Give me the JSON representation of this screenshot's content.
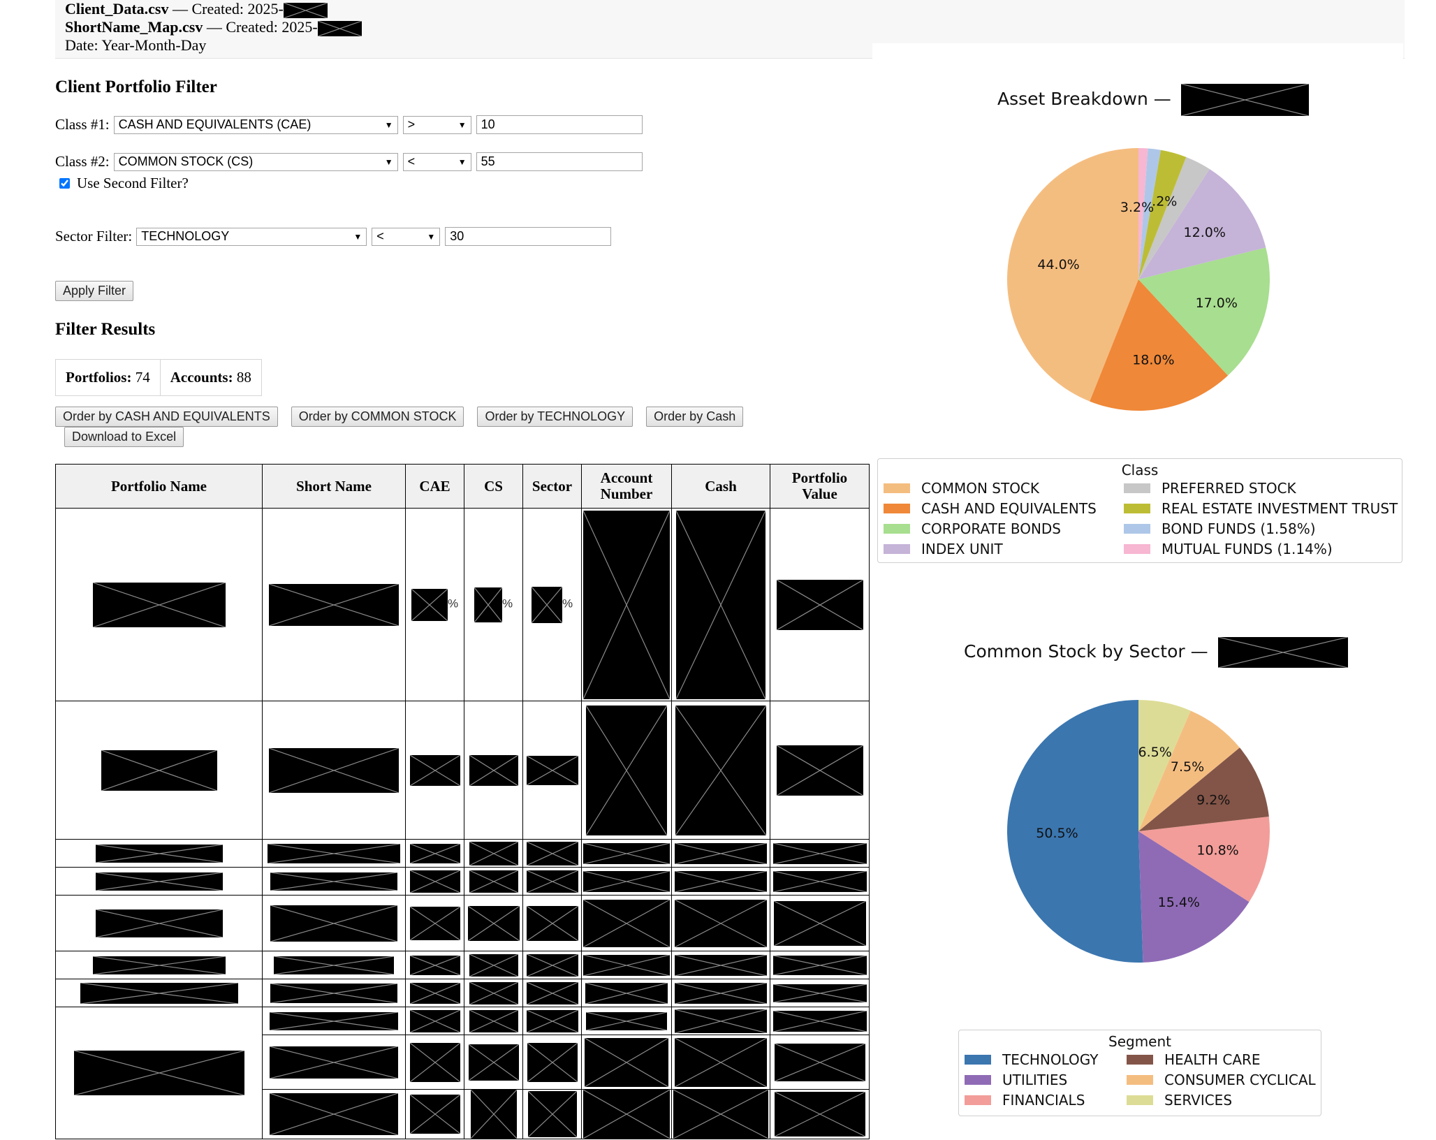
{
  "header": {
    "line1_file": "Client_Data.csv",
    "line1_text": " — Created: 2025-",
    "line2_file": "ShortName_Map.csv",
    "line2_text": " — Created: 2025-",
    "line3_text": "Date: Year-Month-Day"
  },
  "filter": {
    "title": "Client Portfolio Filter",
    "class1_label": "Class #1:",
    "class1_value": "CASH AND EQUIVALENTS (CAE)",
    "class1_op": ">",
    "class1_threshold": "10",
    "class2_label": "Class #2:",
    "class2_value": "COMMON STOCK (CS)",
    "class2_op": "<",
    "class2_threshold": "55",
    "use_second_label": "Use Second Filter?",
    "use_second_checked": true,
    "sector_label": "Sector Filter:",
    "sector_value": "TECHNOLOGY",
    "sector_op": "<",
    "sector_threshold": "30",
    "apply_label": "Apply Filter"
  },
  "results": {
    "title": "Filter Results",
    "portfolios_label": "Portfolios:",
    "portfolios_count": "74",
    "accounts_label": "Accounts:",
    "accounts_count": "88",
    "order_buttons": [
      "Order by CASH AND EQUIVALENTS",
      "Order by COMMON STOCK",
      "Order by TECHNOLOGY",
      "Order by Cash"
    ],
    "download_label": "Download to Excel",
    "pct_symbol": "%",
    "columns": [
      "Portfolio Name",
      "Short Name",
      "CAE",
      "CS",
      "Sector",
      "Account Number",
      "Cash",
      "Portfolio Value"
    ],
    "col_account_l1": "Account",
    "col_account_l2": "Number",
    "col_value_l1": "Portfolio",
    "col_value_l2": "Value"
  },
  "chart_data": [
    {
      "type": "pie",
      "title": "Asset Breakdown —",
      "legend_title": "Class",
      "slices": [
        {
          "label": "COMMON STOCK",
          "value": 44.0,
          "display": "44.0%",
          "color": "#f4bd80"
        },
        {
          "label": "CASH AND EQUIVALENTS",
          "value": 18.0,
          "display": "18.0%",
          "color": "#ef8838"
        },
        {
          "label": "CORPORATE BONDS",
          "value": 17.0,
          "display": "17.0%",
          "color": "#a8de8f"
        },
        {
          "label": "INDEX UNIT",
          "value": 12.0,
          "display": "12.0%",
          "color": "#c5b3d8"
        },
        {
          "label": "PREFERRED STOCK",
          "value": 3.2,
          "display": "",
          "color": "#c7c7c7"
        },
        {
          "label": "REAL ESTATE INVESTMENT TRUST",
          "value": 3.2,
          "display": "3.2%",
          "color": "#bdbd35"
        },
        {
          "label": "BOND FUNDS (1.58%)",
          "value": 1.58,
          "display": "",
          "color": "#aec7e8"
        },
        {
          "label": "MUTUAL FUNDS (1.14%)",
          "value": 1.14,
          "display": "",
          "color": "#f7b6d2"
        }
      ],
      "extra_label": "3.2%"
    },
    {
      "type": "pie",
      "title": "Common Stock by Sector —",
      "legend_title": "Segment",
      "slices": [
        {
          "label": "TECHNOLOGY",
          "value": 50.5,
          "display": "50.5%",
          "color": "#3b76af"
        },
        {
          "label": "UTILITIES",
          "value": 15.4,
          "display": "15.4%",
          "color": "#8f6bb6"
        },
        {
          "label": "FINANCIALS",
          "value": 10.8,
          "display": "10.8%",
          "color": "#f29d99"
        },
        {
          "label": "HEALTH CARE",
          "value": 9.2,
          "display": "9.2%",
          "color": "#835548"
        },
        {
          "label": "CONSUMER CYCLICAL",
          "value": 7.5,
          "display": "7.5%",
          "color": "#f4bd80"
        },
        {
          "label": "SERVICES",
          "value": 6.5,
          "display": "6.5%",
          "color": "#dddc96"
        }
      ]
    }
  ]
}
